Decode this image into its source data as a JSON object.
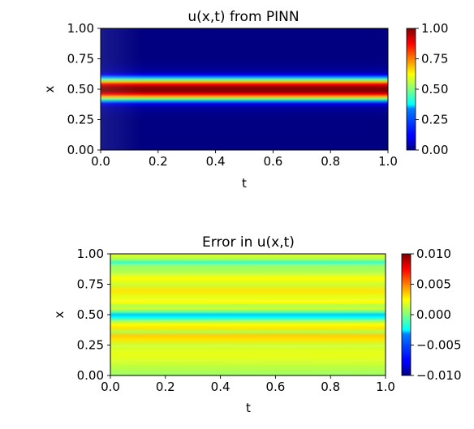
{
  "chart_data": [
    {
      "type": "heatmap",
      "title": "u(x,t) from PINN",
      "xlabel": "t",
      "ylabel": "x",
      "xlim": [
        0.0,
        1.0
      ],
      "ylim": [
        0.0,
        1.0
      ],
      "x_ticks": [
        "0.0",
        "0.2",
        "0.4",
        "0.6",
        "0.8",
        "1.0"
      ],
      "y_ticks": [
        "0.00",
        "0.25",
        "0.50",
        "0.75",
        "1.00"
      ],
      "colorbar": {
        "min": 0.0,
        "max": 1.0,
        "ticks": [
          "0.00",
          "0.25",
          "0.50",
          "0.75",
          "1.00"
        ]
      },
      "colormap": "jet",
      "x_profile": [
        0.0,
        0.05,
        0.1,
        0.15,
        0.2,
        0.25,
        0.3,
        0.35,
        0.38,
        0.4,
        0.42,
        0.44,
        0.46,
        0.48,
        0.5,
        0.52,
        0.54,
        0.56,
        0.58,
        0.6,
        0.62,
        0.65,
        0.7,
        0.75,
        0.8,
        0.85,
        0.9,
        0.95,
        1.0
      ],
      "u_profile": [
        0.0,
        0.0,
        0.0,
        0.0,
        0.0,
        0.0,
        0.01,
        0.03,
        0.1,
        0.26,
        0.48,
        0.7,
        0.88,
        0.98,
        1.0,
        0.98,
        0.88,
        0.7,
        0.48,
        0.26,
        0.1,
        0.03,
        0.01,
        0.0,
        0.0,
        0.0,
        0.0,
        0.0,
        0.0
      ]
    },
    {
      "type": "heatmap",
      "title": "Error in u(x,t)",
      "xlabel": "t",
      "ylabel": "x",
      "xlim": [
        0.0,
        1.0
      ],
      "ylim": [
        0.0,
        1.0
      ],
      "x_ticks": [
        "0.0",
        "0.2",
        "0.4",
        "0.6",
        "0.8",
        "1.0"
      ],
      "y_ticks": [
        "0.00",
        "0.25",
        "0.50",
        "0.75",
        "1.00"
      ],
      "colorbar": {
        "min": -0.01,
        "max": 0.01,
        "ticks": [
          "0.010",
          "0.005",
          "0.000",
          "−0.005",
          "−0.010"
        ]
      },
      "colormap": "jet",
      "x_profile": [
        0.0,
        0.05,
        0.1,
        0.15,
        0.2,
        0.25,
        0.3,
        0.33,
        0.36,
        0.39,
        0.42,
        0.45,
        0.48,
        0.5,
        0.52,
        0.55,
        0.58,
        0.6,
        0.65,
        0.7,
        0.75,
        0.8,
        0.85,
        0.9,
        0.93,
        0.96,
        1.0
      ],
      "error_profile": [
        0.0005,
        0.001,
        0.0015,
        0.002,
        0.002,
        0.0015,
        0.003,
        0.0035,
        0.001,
        0.003,
        0.0025,
        0.0005,
        -0.0025,
        -0.0035,
        -0.001,
        0.0015,
        0.001,
        0.0025,
        0.002,
        0.003,
        0.0015,
        0.0025,
        0.001,
        0.0005,
        -0.0015,
        0.001,
        0.002
      ]
    }
  ]
}
